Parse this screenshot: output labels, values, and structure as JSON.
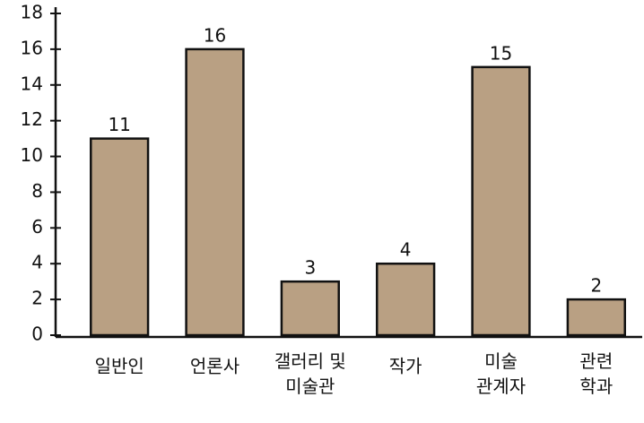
{
  "chart_data": {
    "type": "bar",
    "categories": [
      "일반인",
      "언론사",
      "갤러리 및 미술관",
      "작가",
      "미술 관계자",
      "관련 학과"
    ],
    "values": [
      11,
      16,
      3,
      4,
      15,
      2
    ],
    "color": "#b9a083",
    "ylim": [
      0,
      18
    ],
    "yticks": [
      0,
      2,
      4,
      6,
      8,
      10,
      12,
      14,
      16,
      18
    ]
  }
}
